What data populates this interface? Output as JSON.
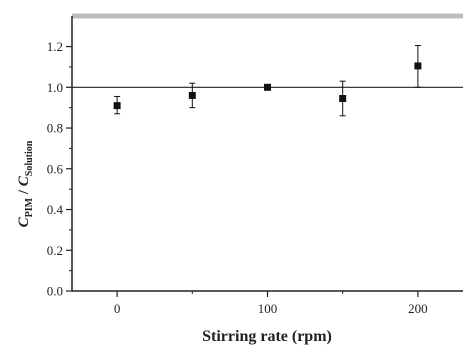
{
  "chart_data": {
    "type": "scatter",
    "title": "",
    "xlabel": "Stirring rate (rpm)",
    "ylabel": {
      "c1": "C",
      "s1": "PIM",
      "sep": " / ",
      "c2": "C",
      "s2": "Solution"
    },
    "xlim": [
      -30,
      230
    ],
    "ylim": [
      0.0,
      1.35
    ],
    "xticks": [
      "0",
      "100",
      "200"
    ],
    "xtick_values": [
      0,
      100,
      200
    ],
    "yticks": [
      "0.0",
      "0.2",
      "0.4",
      "0.6",
      "0.8",
      "1.0",
      "1.2"
    ],
    "ytick_values": [
      0.0,
      0.2,
      0.4,
      0.6,
      0.8,
      1.0,
      1.2
    ],
    "reference_line": 1.0,
    "grid": false,
    "series": [
      {
        "x": [
          0,
          50,
          100,
          150,
          200
        ],
        "y": [
          0.91,
          0.96,
          1.0,
          0.945,
          1.105
        ],
        "err_low": [
          0.87,
          0.9,
          0.99,
          0.86,
          1.0
        ],
        "err_high": [
          0.955,
          1.02,
          1.01,
          1.03,
          1.205
        ]
      }
    ],
    "colors": {
      "marker": "#111111",
      "axis": "#222222",
      "frame_top": "#bdbdbd"
    }
  }
}
